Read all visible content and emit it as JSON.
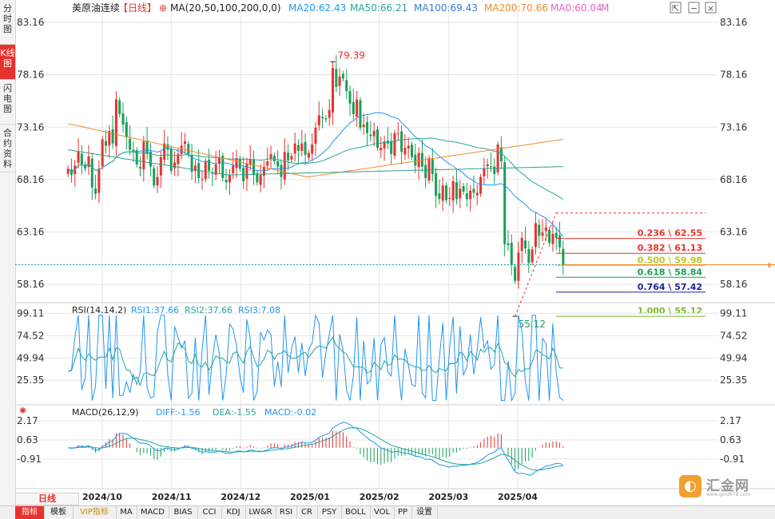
{
  "left_tabs": [
    {
      "label": "分时图",
      "active": false
    },
    {
      "label": "K线图",
      "active": true
    },
    {
      "label": "闪电图",
      "active": false
    },
    {
      "label": "合约资料",
      "active": false
    }
  ],
  "header": {
    "instrument": "美原油连续",
    "period": "【日线】",
    "ma_label": "MA(20,50,100,200,0,0)",
    "ma_values": [
      {
        "text": "MA20:62.43",
        "color": "#2196f3"
      },
      {
        "text": "MA50:66.21",
        "color": "#26a69a"
      },
      {
        "text": "MA100:69.43",
        "color": "#2f7fd0"
      },
      {
        "text": "MA200:70.66",
        "color": "#f08c2a"
      },
      {
        "text": "MA0:60.04",
        "color": "#e066c8"
      },
      {
        "text": "M",
        "color": "#e066c8"
      }
    ]
  },
  "icons": [
    "expand-icon",
    "minus-icon",
    "close-icon"
  ],
  "colors": {
    "up": "#e8322e",
    "down": "#18a058",
    "grid": "#e6e6e6"
  },
  "chart_data": [
    {
      "type": "candlestick",
      "title": "美原油连续 日线",
      "y_ticks": [
        "83.16",
        "78.16",
        "73.16",
        "68.16",
        "63.16",
        "58.16"
      ],
      "ylim": [
        56.5,
        84.3
      ],
      "x_ticks": [
        "2024/10",
        "2024/11",
        "2024/12",
        "2025/01",
        "2025/02",
        "2025/03",
        "2025/04"
      ],
      "annotations": {
        "high": "79.39",
        "low": "55.12",
        "current_price": 60.04
      },
      "fibonacci": [
        {
          "label": "0.236 \\ 62.55",
          "value": 62.55,
          "color": "#e8322e"
        },
        {
          "label": "0.382 \\ 61.13",
          "value": 61.13,
          "color": "#e8322e"
        },
        {
          "label": "0.500 \\ 59.98",
          "value": 59.98,
          "color": "#b8c820"
        },
        {
          "label": "0.618 \\ 58.84",
          "value": 58.84,
          "color": "#18a058"
        },
        {
          "label": "0.764 \\ 57.42",
          "value": 57.42,
          "color": "#2020a0"
        },
        {
          "label": "1.000 \\ 55.12",
          "value": 55.12,
          "color": "#7cb82f"
        }
      ],
      "ma_lines_approx": {
        "MA200": [
          [
            0,
            73.5
          ],
          [
            300,
            68.4
          ],
          [
            620,
            72.0
          ]
        ],
        "MA100": [
          [
            0,
            71.0
          ],
          [
            200,
            68.6
          ],
          [
            620,
            69.4
          ]
        ]
      },
      "closes": [
        69.2,
        68.6,
        69.5,
        70.8,
        69.6,
        69.2,
        70.4,
        67.4,
        66.8,
        69.2,
        72.0,
        71.4,
        72.8,
        71.6,
        75.8,
        74.4,
        73.4,
        72.2,
        71.0,
        70.8,
        69.6,
        69.2,
        71.8,
        70.6,
        69.4,
        67.6,
        68.4,
        70.3,
        71.6,
        71.0,
        69.0,
        69.8,
        70.6,
        71.4,
        71.8,
        70.6,
        68.9,
        69.5,
        68.3,
        68.2,
        69.9,
        69.0,
        68.7,
        69.6,
        70.2,
        68.3,
        67.9,
        68.6,
        69.5,
        70.2,
        69.2,
        68.0,
        69.7,
        70.1,
        68.6,
        67.9,
        68.6,
        69.4,
        69.9,
        70.6,
        69.9,
        69.4,
        68.4,
        70.8,
        70.0,
        70.4,
        71.6,
        70.9,
        71.6,
        70.5,
        70.7,
        71.5,
        73.1,
        74.3,
        74.0,
        73.9,
        74.8,
        78.8,
        77.0,
        78.0,
        77.8,
        76.6,
        75.4,
        74.4,
        75.8,
        73.1,
        73.4,
        72.6,
        72.3,
        72.8,
        71.2,
        71.2,
        71.8,
        71.6,
        70.6,
        72.6,
        72.6,
        70.8,
        71.2,
        71.4,
        70.3,
        69.5,
        70.7,
        69.4,
        68.3,
        70.2,
        68.7,
        66.6,
        66.3,
        67.6,
        66.2,
        66.4,
        68.0,
        66.3,
        67.3,
        67.0,
        66.3,
        67.1,
        66.9,
        66.9,
        68.4,
        69.2,
        69.6,
        69.4,
        68.7,
        71.5,
        69.9,
        62.0,
        61.9,
        60.0,
        58.5,
        61.2,
        62.6,
        61.6,
        60.2,
        61.5,
        64.0,
        62.8,
        63.1,
        63.6,
        62.1,
        63.0,
        62.6,
        61.7,
        60.0
      ],
      "rsi": {
        "label": "RSI(14,14,2)",
        "values": [
          "RSI1:37.66",
          "RSI2:37.66",
          "RSI3:7.08"
        ],
        "y_ticks": [
          "99.11",
          "74.52",
          "49.94",
          "25.35"
        ],
        "ylim": [
          0,
          110
        ]
      },
      "macd": {
        "label": "MACD(26,12,9)",
        "values": [
          "DIFF:-1.56",
          "DEA:-1.55",
          "MACD:-0.02"
        ],
        "y_ticks": [
          "2.17",
          "0.63",
          "-0.91"
        ],
        "ylim": [
          -3.3,
          3.4
        ]
      }
    }
  ],
  "period_box": "日线",
  "bottom_tabs": [
    {
      "label": "指标",
      "active": true
    },
    {
      "label": "模板"
    },
    {
      "label": "VIP指标",
      "vip": true
    },
    {
      "label": "MA"
    },
    {
      "label": "MACD"
    },
    {
      "label": "BIAS"
    },
    {
      "label": "CCI"
    },
    {
      "label": "KDJ"
    },
    {
      "label": "LW&R"
    },
    {
      "label": "RSI"
    },
    {
      "label": "CR"
    },
    {
      "label": "PSY"
    },
    {
      "label": "BOLL"
    },
    {
      "label": "VOL"
    },
    {
      "label": "PP"
    },
    {
      "label": "设置"
    }
  ],
  "logo": {
    "text": "汇金网",
    "url": "www.gold678.com"
  }
}
